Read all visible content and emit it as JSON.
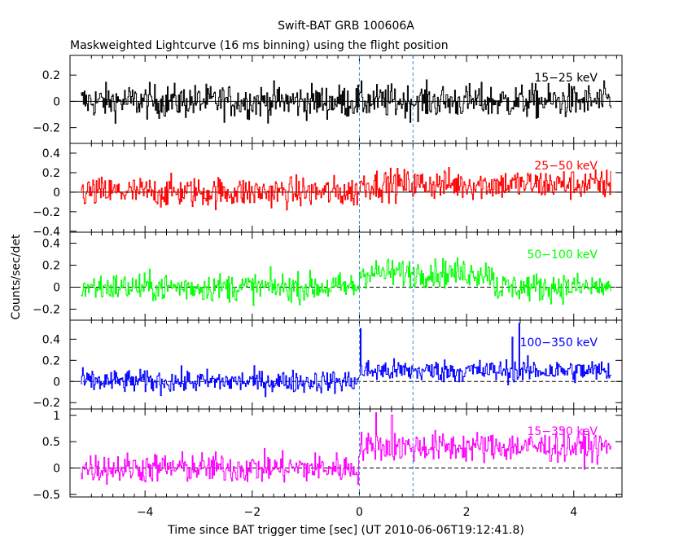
{
  "title": "Swift-BAT GRB 100606A",
  "subtitle": "Maskweighted Lightcurve (16 ms binning) using the flight position",
  "chart_data": {
    "type": "line",
    "xlabel": "Time since BAT trigger time [sec] (UT 2010-06-06T19:12:41.8)",
    "ylabel": "Counts/sec/det",
    "xlim": [
      -5.4,
      4.9
    ],
    "x_ticks": [
      -4,
      -2,
      0,
      2,
      4
    ],
    "x_tick_labels": [
      "−4",
      "−2",
      "0",
      "2",
      "4"
    ],
    "data_x_range": [
      -5.2,
      4.7
    ],
    "bin_width": 0.016,
    "vertical_markers": [
      0,
      1.0
    ],
    "grid": false,
    "legend": "none",
    "panels": [
      {
        "name": "15−25 keV",
        "color": "#000000",
        "ylim": [
          -0.32,
          0.35
        ],
        "ticks": [
          -0.2,
          0,
          0.2
        ],
        "tick_labels": [
          "−0.2",
          "0",
          "0.2"
        ],
        "pre_level": 0.0,
        "post_level": 0.0,
        "post_until": 4.7,
        "noise": 0.09,
        "spikes": [],
        "zero_line": "solid"
      },
      {
        "name": "25−50 keV",
        "color": "#ff0000",
        "ylim": [
          -0.41,
          0.5
        ],
        "ticks": [
          -0.4,
          -0.2,
          0,
          0.2,
          0.4
        ],
        "tick_labels": [
          "−0.4",
          "−0.2",
          "0",
          "0.2",
          "0.4"
        ],
        "pre_level": 0.0,
        "post_level": 0.08,
        "post_until": 4.7,
        "noise": 0.11,
        "spikes": [],
        "zero_line": "solid"
      },
      {
        "name": "50−100 keV",
        "color": "#00ff00",
        "ylim": [
          -0.3,
          0.5
        ],
        "ticks": [
          -0.2,
          0,
          0.2,
          0.4
        ],
        "tick_labels": [
          "−0.2",
          "0",
          "0.2",
          "0.4"
        ],
        "pre_level": 0.0,
        "post_level": 0.13,
        "post_until": 2.5,
        "noise": 0.09,
        "spikes": [],
        "zero_line": "dashed"
      },
      {
        "name": "100−350 keV",
        "color": "#0000ff",
        "ylim": [
          -0.26,
          0.58
        ],
        "ticks": [
          -0.2,
          0,
          0.2,
          0.4
        ],
        "tick_labels": [
          "−0.2",
          "0",
          "0.2",
          "0.4"
        ],
        "pre_level": 0.0,
        "post_level": 0.1,
        "post_until": 4.7,
        "noise": 0.075,
        "spikes": [
          [
            0.02,
            0.5
          ],
          [
            2.85,
            0.42
          ],
          [
            2.98,
            0.55
          ]
        ],
        "zero_line": "dashed"
      },
      {
        "name": "15−350 keV",
        "color": "#ff00ff",
        "ylim": [
          -0.55,
          1.12
        ],
        "ticks": [
          -0.5,
          0,
          0.5,
          1
        ],
        "tick_labels": [
          "−0.5",
          "0",
          "0.5",
          "1"
        ],
        "pre_level": 0.0,
        "post_level": 0.4,
        "post_until": 4.7,
        "noise": 0.2,
        "spikes": [
          [
            0.3,
            1.05
          ],
          [
            0.6,
            1.0
          ]
        ],
        "zero_line": "dashed"
      }
    ]
  }
}
